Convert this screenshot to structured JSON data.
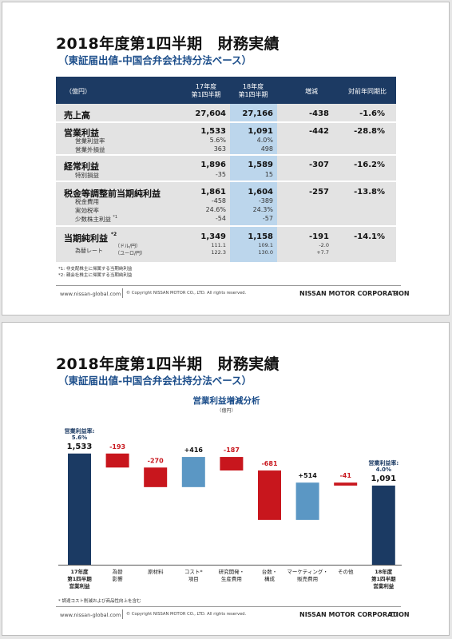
{
  "footer": {
    "url": "www.nissan-global.com",
    "copyright": "© Copyright NISSAN MOTOR CO., LTD. All rights reserved.",
    "corp": "NISSAN MOTOR CORPORATION"
  },
  "slide1": {
    "title": "2018年度第1四半期　財務実績",
    "subtitle": "（東証届出値-中国合弁会社持分法ベース）",
    "page": "9",
    "header": {
      "unit": "（億円）",
      "fy17_l1": "17年度",
      "fy17_l2": "第1四半期",
      "fy18_l1": "18年度",
      "fy18_l2": "第1四半期",
      "change": "増減",
      "yoy": "対前年同期比"
    },
    "rows": {
      "sales": {
        "label": "売上高",
        "fy17": "27,604",
        "fy18": "27,166",
        "change": "-438",
        "yoy": "-1.6%"
      },
      "op": {
        "label": "営業利益",
        "fy17": "1,533",
        "fy18": "1,091",
        "change": "-442",
        "yoy": "-28.8%",
        "s1_label": "営業利益率",
        "s1_fy17": "5.6%",
        "s1_fy18": "4.0%",
        "s2_label": "営業外損益",
        "s2_fy17": "363",
        "s2_fy18": "498"
      },
      "ord": {
        "label": "経常利益",
        "fy17": "1,896",
        "fy18": "1,589",
        "change": "-307",
        "yoy": "-16.2%",
        "s1_label": "特別損益",
        "s1_fy17": "-35",
        "s1_fy18": "15"
      },
      "pre": {
        "label": "税金等調整前当期純利益",
        "fy17": "1,861",
        "fy18": "1,604",
        "change": "-257",
        "yoy": "-13.8%",
        "s1_label": "税金費用",
        "s1_fy17": "-458",
        "s1_fy18": "-389",
        "s2_label": "実効税率",
        "s2_fy17": "24.6%",
        "s2_fy18": "24.3%",
        "s3_label": "少数株主利益",
        "s3_mark": "*1",
        "s3_fy17": "-54",
        "s3_fy18": "-57"
      },
      "net": {
        "label": "当期純利益",
        "mark": "*2",
        "fy17": "1,349",
        "fy18": "1,158",
        "change": "-191",
        "yoy": "-14.1%",
        "fx_label": "為替レート",
        "fx_usd_unit": "（ドル/円）",
        "fx_usd_fy17": "111.1",
        "fx_usd_fy18": "109.1",
        "fx_usd_change": "-2.0",
        "fx_eur_unit": "（ユーロ/円）",
        "fx_eur_fy17": "122.3",
        "fx_eur_fy18": "130.0",
        "fx_eur_change": "+7.7"
      }
    },
    "notes": [
      "*1: 非支配株主に帰属する当期純利益",
      "*2: 親会社株主に帰属する当期純利益"
    ]
  },
  "slide2": {
    "title": "2018年度第1四半期　財務実績",
    "subtitle": "（東証届出値-中国合弁会社持分法ベース）",
    "page": "10",
    "note": "* 調達コスト削減および商品性向上を含む"
  },
  "chart_data": {
    "type": "bar",
    "subtype": "waterfall",
    "title": "営業利益増減分析",
    "unit": "（億円）",
    "categories": [
      [
        "17年度",
        "第1四半期",
        "営業利益"
      ],
      [
        "為替",
        "影響"
      ],
      [
        "原材料"
      ],
      [
        "コスト*",
        "項目"
      ],
      [
        "研究開発・",
        "生産費用"
      ],
      [
        "台数・",
        "構成"
      ],
      [
        "マーケティング・",
        "販売費用"
      ],
      [
        "その他"
      ],
      [
        "18年度",
        "第1四半期",
        "営業利益"
      ]
    ],
    "values": [
      1533,
      -193,
      -270,
      416,
      -187,
      -681,
      514,
      -41,
      1091
    ],
    "value_labels": [
      "1,533",
      "-193",
      "-270",
      "+416",
      "-187",
      "-681",
      "+514",
      "-41",
      "1,091"
    ],
    "kinds": [
      "total",
      "delta",
      "delta",
      "delta",
      "delta",
      "delta",
      "delta",
      "delta",
      "total"
    ],
    "annotations": [
      {
        "index": 0,
        "line1": "営業利益率:",
        "line2": "5.6%"
      },
      {
        "index": 8,
        "line1": "営業利益率:",
        "line2": "4.0%"
      }
    ],
    "ylim": [
      0,
      1740
    ],
    "grid": false,
    "colors": {
      "total": "#1b3a63",
      "negative": "#c8161d",
      "positive": "#5b97c4",
      "negative_label": "#c8161d",
      "total_label": "#111"
    }
  }
}
